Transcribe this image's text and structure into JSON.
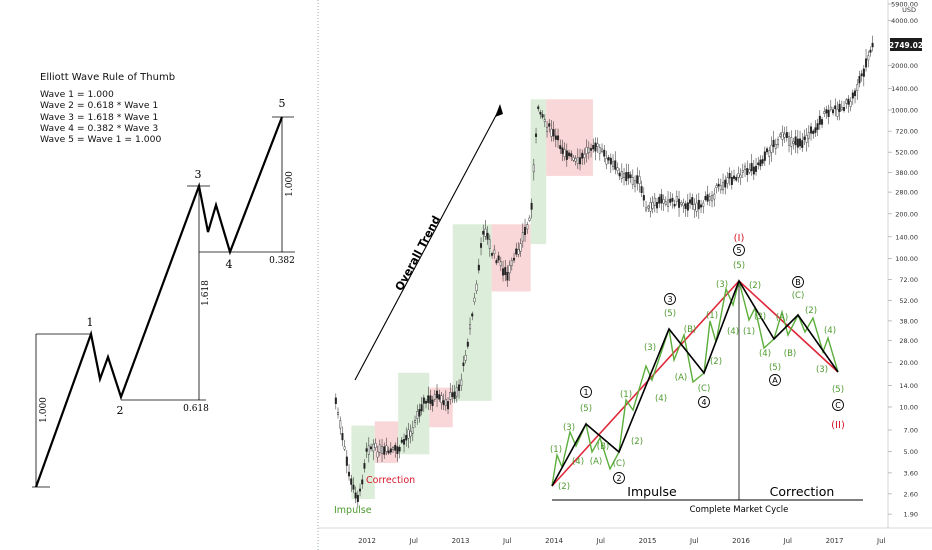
{
  "rule": {
    "title": "Elliott Wave Rule of Thumb",
    "lines": [
      "Wave 1 = 1.000",
      "Wave 2 = 0.618 * Wave 1",
      "Wave 3 = 1.618 * Wave 1",
      "Wave 4 = 0.382 * Wave 3",
      "Wave 5 = Wave 1 = 1.000"
    ]
  },
  "schematic": {
    "wave_labels": [
      "1",
      "2",
      "3",
      "4",
      "5"
    ],
    "ratio_labels": [
      "1.000",
      "0.618",
      "1.618",
      "0.382",
      "1.000"
    ]
  },
  "annotations": {
    "overall_trend": "Overall Trend",
    "correction": "Correction",
    "impulse": "Impulse",
    "cycle_impulse": "Impulse",
    "cycle_correction": "Correction",
    "complete_cycle": "Complete Market Cycle",
    "cycle_top": "(I)",
    "cycle_bottom": "(II)"
  },
  "cycle_labels": {
    "circled_numbers": [
      "1",
      "2",
      "3",
      "4",
      "5"
    ],
    "circled_letters": [
      "A",
      "B",
      "C"
    ],
    "green_wave_numbers": [
      "(1)",
      "(2)",
      "(3)",
      "(4)",
      "(5)"
    ],
    "green_abc": [
      "(A)",
      "(B)",
      "(C)"
    ]
  },
  "colors": {
    "green_zone": "#d6ebd2",
    "red_zone": "#f8cfd0",
    "red_line": "#e0283a",
    "green_line": "#5cae3b",
    "text_green": "#4e9a2f",
    "text_red": "#d8182b",
    "price_tag_bg": "#1c1c1c"
  },
  "chart_data": {
    "type": "candlestick",
    "title": "",
    "xlabel": "",
    "ylabel": "",
    "y_scale": "log",
    "y_unit": "USD",
    "y_ticks": [
      "5900.00",
      "4000.00",
      "2749.02",
      "2000.00",
      "1400.00",
      "1000.00",
      "720.00",
      "520.00",
      "380.00",
      "280.00",
      "200.00",
      "140.00",
      "100.00",
      "72.00",
      "52.00",
      "38.00",
      "28.00",
      "20.00",
      "14.00",
      "10.00",
      "7.00",
      "5.00",
      "3.60",
      "2.60",
      "1.90"
    ],
    "y_tick_values": [
      5900,
      4000,
      2000,
      1400,
      1000,
      720,
      520,
      380,
      280,
      200,
      140,
      100,
      72,
      52,
      38,
      28,
      20,
      14,
      10,
      7,
      5,
      3.6,
      2.6,
      1.9
    ],
    "x_ticks": [
      "2012",
      "Jul",
      "2013",
      "Jul",
      "2014",
      "Jul",
      "2015",
      "Jul",
      "2016",
      "Jul",
      "2017",
      "Jul"
    ],
    "last_price": "2749.02",
    "price_path": [
      {
        "date": "2011-09",
        "value": 11
      },
      {
        "date": "2011-10",
        "value": 5.5
      },
      {
        "date": "2011-11",
        "value": 3.0
      },
      {
        "date": "2011-12",
        "value": 2.4
      },
      {
        "date": "2012-01",
        "value": 5.5
      },
      {
        "date": "2012-02",
        "value": 5.2
      },
      {
        "date": "2012-03",
        "value": 4.9
      },
      {
        "date": "2012-05",
        "value": 5.1
      },
      {
        "date": "2012-07",
        "value": 7.5
      },
      {
        "date": "2012-08",
        "value": 10.5
      },
      {
        "date": "2012-10",
        "value": 11.5
      },
      {
        "date": "2012-11",
        "value": 10.2
      },
      {
        "date": "2013-01",
        "value": 14
      },
      {
        "date": "2013-03",
        "value": 60
      },
      {
        "date": "2013-04",
        "value": 170
      },
      {
        "date": "2013-05",
        "value": 110
      },
      {
        "date": "2013-06",
        "value": 95
      },
      {
        "date": "2013-07",
        "value": 75
      },
      {
        "date": "2013-08",
        "value": 100
      },
      {
        "date": "2013-10",
        "value": 190
      },
      {
        "date": "2013-11",
        "value": 1100
      },
      {
        "date": "2013-12",
        "value": 800
      },
      {
        "date": "2014-02",
        "value": 560
      },
      {
        "date": "2014-04",
        "value": 430
      },
      {
        "date": "2014-06",
        "value": 600
      },
      {
        "date": "2014-09",
        "value": 400
      },
      {
        "date": "2014-12",
        "value": 320
      },
      {
        "date": "2015-01",
        "value": 210
      },
      {
        "date": "2015-03",
        "value": 250
      },
      {
        "date": "2015-06",
        "value": 235
      },
      {
        "date": "2015-08",
        "value": 230
      },
      {
        "date": "2015-11",
        "value": 330
      },
      {
        "date": "2016-01",
        "value": 380
      },
      {
        "date": "2016-03",
        "value": 420
      },
      {
        "date": "2016-06",
        "value": 650
      },
      {
        "date": "2016-09",
        "value": 610
      },
      {
        "date": "2016-12",
        "value": 950
      },
      {
        "date": "2017-03",
        "value": 1100
      },
      {
        "date": "2017-05",
        "value": 2000
      },
      {
        "date": "2017-06",
        "value": 2749
      }
    ],
    "zones": [
      {
        "kind": "impulse",
        "from": "2011-11",
        "to": "2012-02",
        "low": 2.4,
        "high": 7.5
      },
      {
        "kind": "correction",
        "from": "2012-02",
        "to": "2012-05",
        "low": 4.2,
        "high": 8.0
      },
      {
        "kind": "impulse",
        "from": "2012-05",
        "to": "2012-09",
        "low": 4.8,
        "high": 17
      },
      {
        "kind": "correction",
        "from": "2012-09",
        "to": "2012-12",
        "low": 7.3,
        "high": 13.5
      },
      {
        "kind": "impulse",
        "from": "2012-12",
        "to": "2013-05",
        "low": 11,
        "high": 170
      },
      {
        "kind": "correction",
        "from": "2013-05",
        "to": "2013-10",
        "low": 60,
        "high": 170
      },
      {
        "kind": "impulse",
        "from": "2013-10",
        "to": "2013-12",
        "low": 125,
        "high": 1180
      },
      {
        "kind": "correction",
        "from": "2013-12",
        "to": "2014-06",
        "low": 360,
        "high": 1180
      }
    ]
  }
}
